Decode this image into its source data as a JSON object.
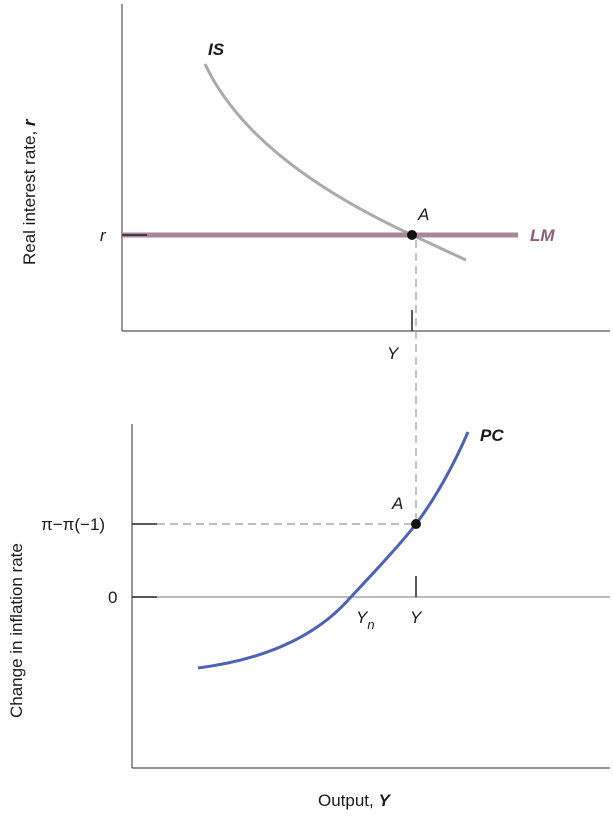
{
  "top_panel": {
    "y_axis_label": "Real interest rate, ",
    "y_axis_var": "r",
    "r_tick": "r",
    "y_tick": "Y",
    "is_label": "IS",
    "lm_label": "LM",
    "point_label": "A"
  },
  "bottom_panel": {
    "y_axis_label": "Change in inflation rate",
    "pi_tick": "π−π(−1)",
    "zero_tick": "0",
    "yn_label": "Y",
    "yn_sub": "n",
    "y_tick": "Y",
    "pc_label": "PC",
    "point_label": "A",
    "x_axis_label": "Output, ",
    "x_axis_var": "Y"
  },
  "colors": {
    "is_curve": "#aaaaaa",
    "lm_curve": "#a8889c",
    "lm_label": "#8a5a7e",
    "pc_curve": "#4a63b8",
    "axis": "#555555",
    "guide": "#999999",
    "point": "#111111"
  }
}
